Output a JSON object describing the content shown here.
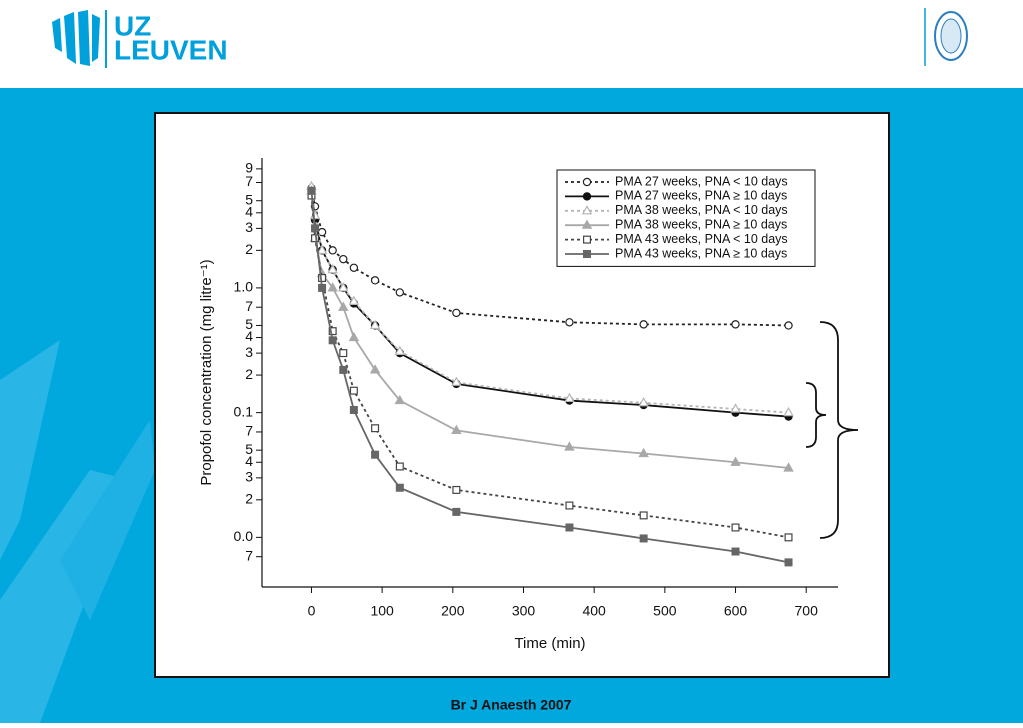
{
  "header": {
    "logo_top": "UZ",
    "logo_bottom": "LEUVEN"
  },
  "chart_data": {
    "type": "line",
    "x_label": "Time (min)",
    "y_label": "Propofol concentration (mg litre⁻¹)",
    "log_y": true,
    "x": [
      0,
      5,
      15,
      30,
      45,
      60,
      90,
      125,
      205,
      365,
      470,
      600,
      675
    ],
    "xlim": [
      -70,
      745
    ],
    "xticks": [
      0,
      100,
      200,
      300,
      400,
      500,
      600,
      700
    ],
    "ylim": [
      0.004,
      11
    ],
    "yticks": [
      9,
      7,
      5,
      4,
      3,
      2,
      {
        "value": 1,
        "label": "1.0"
      },
      {
        "value": 0.7,
        "label": "7"
      },
      {
        "value": 0.5,
        "label": "5"
      },
      {
        "value": 0.4,
        "label": "4"
      },
      {
        "value": 0.3,
        "label": "3"
      },
      {
        "value": 0.2,
        "label": "2"
      },
      {
        "value": 0.1,
        "label": "0.1"
      },
      {
        "value": 0.07,
        "label": "7"
      },
      {
        "value": 0.05,
        "label": "5"
      },
      {
        "value": 0.04,
        "label": "4"
      },
      {
        "value": 0.03,
        "label": "3"
      },
      {
        "value": 0.02,
        "label": "2"
      },
      {
        "value": 0.01,
        "label": "0.0"
      },
      {
        "value": 0.007,
        "label": "7"
      }
    ],
    "legend": "upper right",
    "series": [
      {
        "name": "PMA 27 weeks, PNA < 10 days",
        "color": "#222222",
        "dashed": true,
        "marker": "circle",
        "filled": false,
        "values": [
          6.3,
          4.5,
          2.8,
          2.0,
          1.7,
          1.45,
          1.15,
          0.92,
          0.63,
          0.53,
          0.51,
          0.51,
          0.5
        ]
      },
      {
        "name": "PMA 27 weeks, PNA ≥ 10 days",
        "color": "#111111",
        "dashed": false,
        "marker": "circle",
        "filled": true,
        "values": [
          6.0,
          3.5,
          2.0,
          1.4,
          1.0,
          0.75,
          0.5,
          0.3,
          0.17,
          0.125,
          0.115,
          0.1,
          0.093
        ]
      },
      {
        "name": "PMA 38 weeks, PNA < 10 days",
        "color": "#b5b5b5",
        "dashed": true,
        "marker": "triangle",
        "filled": false,
        "values": [
          6.5,
          3.8,
          2.0,
          1.4,
          1.0,
          0.78,
          0.5,
          0.31,
          0.175,
          0.13,
          0.12,
          0.107,
          0.1
        ]
      },
      {
        "name": "PMA 38 weeks, PNA ≥ 10 days",
        "color": "#a8a8a8",
        "dashed": false,
        "marker": "triangle",
        "filled": true,
        "values": [
          6.0,
          2.5,
          1.3,
          1.0,
          0.7,
          0.4,
          0.22,
          0.125,
          0.072,
          0.053,
          0.047,
          0.04,
          0.036
        ]
      },
      {
        "name": "PMA 43 weeks, PNA < 10 days",
        "color": "#444444",
        "dashed": true,
        "marker": "square",
        "filled": false,
        "values": [
          5.5,
          2.5,
          1.2,
          0.45,
          0.3,
          0.15,
          0.075,
          0.037,
          0.024,
          0.018,
          0.015,
          0.012,
          0.01
        ]
      },
      {
        "name": "PMA 43 weeks, PNA ≥ 10 days",
        "color": "#666666",
        "dashed": false,
        "marker": "square",
        "filled": true,
        "values": [
          6.0,
          3.0,
          1.0,
          0.38,
          0.22,
          0.105,
          0.046,
          0.025,
          0.016,
          0.012,
          0.0098,
          0.0077,
          0.0063
        ]
      }
    ]
  },
  "footer": {
    "citation": "Br J Anaesth 2007"
  }
}
